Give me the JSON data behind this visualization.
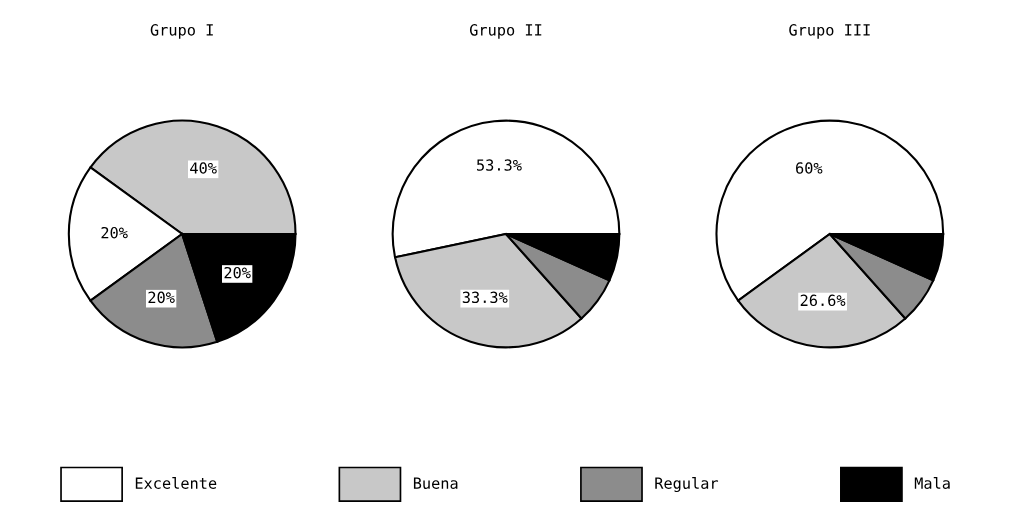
{
  "chart_data": [
    {
      "type": "pie",
      "title": "Grupo I",
      "categories": [
        "Buena",
        "Excelente",
        "Regular",
        "Mala"
      ],
      "values": [
        40,
        20,
        20,
        20
      ],
      "colors": [
        "#c8c8c8",
        "#ffffff",
        "#8c8c8c",
        "#000000"
      ],
      "value_labels": [
        "40%",
        "20%",
        "20%",
        "20%"
      ],
      "legend": "bottom"
    },
    {
      "type": "pie",
      "title": "Grupo II",
      "categories": [
        null,
        null,
        null,
        null
      ],
      "values": [
        53.3,
        33.3,
        6.7,
        6.7
      ],
      "colors": [
        "#ffffff",
        "#c8c8c8",
        "#8c8c8c",
        "#000000"
      ],
      "value_labels": [
        "53.3%",
        "33.3%",
        null,
        null
      ]
    },
    {
      "type": "pie",
      "title": "Grupo III",
      "categories": [
        null,
        null,
        null,
        null
      ],
      "values": [
        60,
        26.6,
        6.7,
        6.7
      ],
      "colors": [
        "#ffffff",
        "#c8c8c8",
        "#8c8c8c",
        "#000000"
      ],
      "value_labels": [
        "60%",
        "26.6%",
        null,
        null
      ]
    }
  ]
}
